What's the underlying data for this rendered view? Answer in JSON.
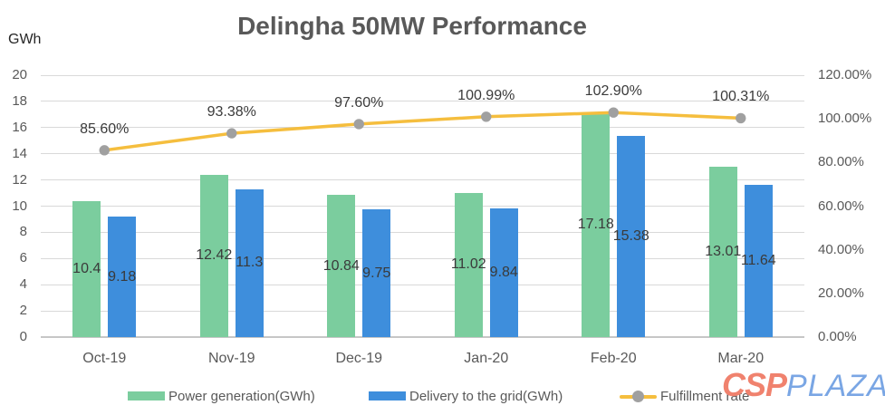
{
  "title": "Delingha 50MW Performance",
  "y_axis_unit": "GWh",
  "chart_data": {
    "type": "bar",
    "subtype": "combo-bar-line",
    "title": "Delingha 50MW Performance",
    "categories": [
      "Oct-19",
      "Nov-19",
      "Dec-19",
      "Jan-20",
      "Feb-20",
      "Mar-20"
    ],
    "series": [
      {
        "name": "Power generation(GWh)",
        "type": "bar",
        "axis": "left",
        "color": "#7BCD9E",
        "values": [
          10.4,
          12.42,
          10.84,
          11.02,
          17.18,
          13.01
        ],
        "labels": [
          "10.4",
          "12.42",
          "10.84",
          "11.02",
          "17.18",
          "13.01"
        ]
      },
      {
        "name": "Delivery to the grid(GWh)",
        "type": "bar",
        "axis": "left",
        "color": "#3E8EDC",
        "values": [
          9.18,
          11.3,
          9.75,
          9.84,
          15.38,
          11.64
        ],
        "labels": [
          "9.18",
          "11.3",
          "9.75",
          "9.84",
          "15.38",
          "11.64"
        ]
      },
      {
        "name": "Fulfillment rate",
        "type": "line",
        "axis": "right",
        "color": "#F5BE3E",
        "marker_color": "#A0A0A0",
        "values": [
          85.6,
          93.38,
          97.6,
          100.99,
          102.9,
          100.31
        ],
        "labels": [
          "85.60%",
          "93.38%",
          "97.60%",
          "100.99%",
          "102.90%",
          "100.31%"
        ]
      }
    ],
    "left_axis": {
      "label": "GWh",
      "min": 0,
      "max": 20,
      "step": 2,
      "ticks": [
        "0",
        "2",
        "4",
        "6",
        "8",
        "10",
        "12",
        "14",
        "16",
        "18",
        "20"
      ]
    },
    "right_axis": {
      "min": 0,
      "max": 120,
      "step": 20,
      "ticks": [
        "0.00%",
        "20.00%",
        "40.00%",
        "60.00%",
        "80.00%",
        "100.00%",
        "120.00%"
      ]
    },
    "grid": true,
    "legend_position": "bottom"
  },
  "legend": {
    "items": [
      {
        "label": "Power generation(GWh)",
        "color": "#7BCD9E",
        "kind": "swatch"
      },
      {
        "label": "Delivery to the grid(GWh)",
        "color": "#3E8EDC",
        "kind": "swatch"
      },
      {
        "label": "Fulfillment rate",
        "color": "#F5BE3E",
        "marker_color": "#A0A0A0",
        "kind": "line-marker"
      }
    ]
  },
  "logo": {
    "part1": "CSP",
    "part2": "PLAZA",
    "color1": "#F0826E",
    "color2": "#7AA6E4"
  }
}
